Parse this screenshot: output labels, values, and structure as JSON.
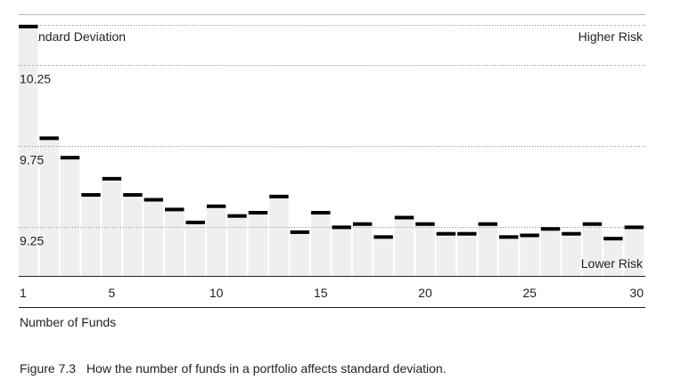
{
  "chart_data": {
    "type": "bar",
    "title": "",
    "ylabel": "Standard Deviation",
    "xlabel": "Number of Funds",
    "annotations": {
      "top_right": "Higher Risk",
      "bottom_right": "Lower Risk"
    },
    "ylim": [
      8.95,
      10.5
    ],
    "yticks": [
      9.25,
      9.75,
      10.25
    ],
    "ytick_labels": [
      "9.25",
      "9.75",
      "10.25"
    ],
    "xticks": [
      1,
      5,
      10,
      15,
      20,
      25,
      30
    ],
    "xtick_labels": [
      "1",
      "5",
      "10",
      "15",
      "20",
      "25",
      "30"
    ],
    "grid": true,
    "x": [
      1,
      2,
      3,
      4,
      5,
      6,
      7,
      8,
      9,
      10,
      11,
      12,
      13,
      14,
      15,
      16,
      17,
      18,
      19,
      20,
      21,
      22,
      23,
      24,
      25,
      26,
      27,
      28,
      29,
      30
    ],
    "values": [
      10.49,
      9.8,
      9.68,
      9.45,
      9.55,
      9.45,
      9.42,
      9.36,
      9.28,
      9.38,
      9.32,
      9.34,
      9.44,
      9.22,
      9.34,
      9.25,
      9.27,
      9.19,
      9.31,
      9.27,
      9.21,
      9.21,
      9.27,
      9.19,
      9.2,
      9.24,
      9.21,
      9.27,
      9.18,
      9.25
    ]
  },
  "figure": {
    "number": "Figure 7.3",
    "caption": "How the number of funds in a portfolio affects standard deviation."
  },
  "colors": {
    "bar": "#efefef",
    "marker": "#000000",
    "grid": "#8c8c8c",
    "axis": "#231f20"
  }
}
